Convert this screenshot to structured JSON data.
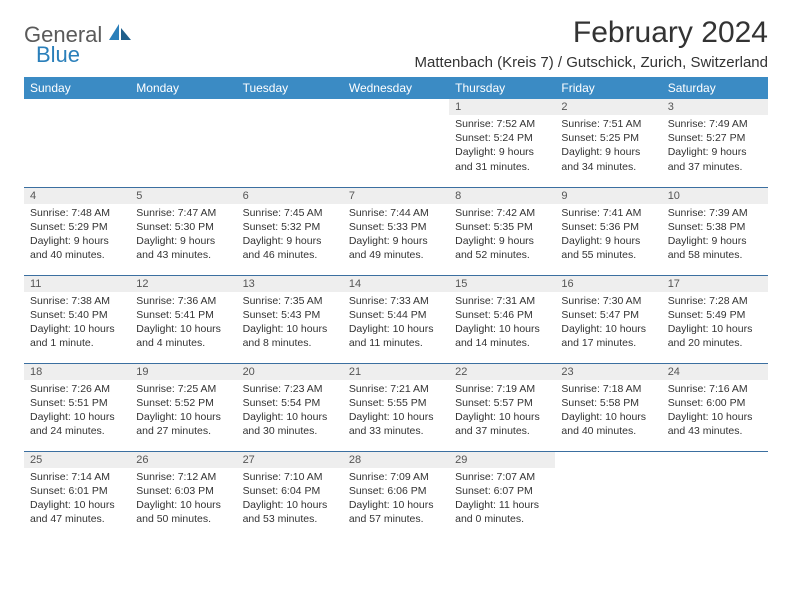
{
  "brand": {
    "word1": "General",
    "word2": "Blue",
    "color_general": "#5a5a5a",
    "color_blue": "#2a7fba"
  },
  "title": "February 2024",
  "location": "Mattenbach (Kreis 7) / Gutschick, Zurich, Switzerland",
  "colors": {
    "header_bg": "#3b8bc4",
    "header_fg": "#ffffff",
    "row_border": "#3b6fa0",
    "daynum_bg": "#eeeeee",
    "text": "#333333"
  },
  "day_headers": [
    "Sunday",
    "Monday",
    "Tuesday",
    "Wednesday",
    "Thursday",
    "Friday",
    "Saturday"
  ],
  "weeks": [
    [
      {
        "n": "",
        "sunrise": "",
        "sunset": "",
        "daylight": ""
      },
      {
        "n": "",
        "sunrise": "",
        "sunset": "",
        "daylight": ""
      },
      {
        "n": "",
        "sunrise": "",
        "sunset": "",
        "daylight": ""
      },
      {
        "n": "",
        "sunrise": "",
        "sunset": "",
        "daylight": ""
      },
      {
        "n": "1",
        "sunrise": "Sunrise: 7:52 AM",
        "sunset": "Sunset: 5:24 PM",
        "daylight": "Daylight: 9 hours and 31 minutes."
      },
      {
        "n": "2",
        "sunrise": "Sunrise: 7:51 AM",
        "sunset": "Sunset: 5:25 PM",
        "daylight": "Daylight: 9 hours and 34 minutes."
      },
      {
        "n": "3",
        "sunrise": "Sunrise: 7:49 AM",
        "sunset": "Sunset: 5:27 PM",
        "daylight": "Daylight: 9 hours and 37 minutes."
      }
    ],
    [
      {
        "n": "4",
        "sunrise": "Sunrise: 7:48 AM",
        "sunset": "Sunset: 5:29 PM",
        "daylight": "Daylight: 9 hours and 40 minutes."
      },
      {
        "n": "5",
        "sunrise": "Sunrise: 7:47 AM",
        "sunset": "Sunset: 5:30 PM",
        "daylight": "Daylight: 9 hours and 43 minutes."
      },
      {
        "n": "6",
        "sunrise": "Sunrise: 7:45 AM",
        "sunset": "Sunset: 5:32 PM",
        "daylight": "Daylight: 9 hours and 46 minutes."
      },
      {
        "n": "7",
        "sunrise": "Sunrise: 7:44 AM",
        "sunset": "Sunset: 5:33 PM",
        "daylight": "Daylight: 9 hours and 49 minutes."
      },
      {
        "n": "8",
        "sunrise": "Sunrise: 7:42 AM",
        "sunset": "Sunset: 5:35 PM",
        "daylight": "Daylight: 9 hours and 52 minutes."
      },
      {
        "n": "9",
        "sunrise": "Sunrise: 7:41 AM",
        "sunset": "Sunset: 5:36 PM",
        "daylight": "Daylight: 9 hours and 55 minutes."
      },
      {
        "n": "10",
        "sunrise": "Sunrise: 7:39 AM",
        "sunset": "Sunset: 5:38 PM",
        "daylight": "Daylight: 9 hours and 58 minutes."
      }
    ],
    [
      {
        "n": "11",
        "sunrise": "Sunrise: 7:38 AM",
        "sunset": "Sunset: 5:40 PM",
        "daylight": "Daylight: 10 hours and 1 minute."
      },
      {
        "n": "12",
        "sunrise": "Sunrise: 7:36 AM",
        "sunset": "Sunset: 5:41 PM",
        "daylight": "Daylight: 10 hours and 4 minutes."
      },
      {
        "n": "13",
        "sunrise": "Sunrise: 7:35 AM",
        "sunset": "Sunset: 5:43 PM",
        "daylight": "Daylight: 10 hours and 8 minutes."
      },
      {
        "n": "14",
        "sunrise": "Sunrise: 7:33 AM",
        "sunset": "Sunset: 5:44 PM",
        "daylight": "Daylight: 10 hours and 11 minutes."
      },
      {
        "n": "15",
        "sunrise": "Sunrise: 7:31 AM",
        "sunset": "Sunset: 5:46 PM",
        "daylight": "Daylight: 10 hours and 14 minutes."
      },
      {
        "n": "16",
        "sunrise": "Sunrise: 7:30 AM",
        "sunset": "Sunset: 5:47 PM",
        "daylight": "Daylight: 10 hours and 17 minutes."
      },
      {
        "n": "17",
        "sunrise": "Sunrise: 7:28 AM",
        "sunset": "Sunset: 5:49 PM",
        "daylight": "Daylight: 10 hours and 20 minutes."
      }
    ],
    [
      {
        "n": "18",
        "sunrise": "Sunrise: 7:26 AM",
        "sunset": "Sunset: 5:51 PM",
        "daylight": "Daylight: 10 hours and 24 minutes."
      },
      {
        "n": "19",
        "sunrise": "Sunrise: 7:25 AM",
        "sunset": "Sunset: 5:52 PM",
        "daylight": "Daylight: 10 hours and 27 minutes."
      },
      {
        "n": "20",
        "sunrise": "Sunrise: 7:23 AM",
        "sunset": "Sunset: 5:54 PM",
        "daylight": "Daylight: 10 hours and 30 minutes."
      },
      {
        "n": "21",
        "sunrise": "Sunrise: 7:21 AM",
        "sunset": "Sunset: 5:55 PM",
        "daylight": "Daylight: 10 hours and 33 minutes."
      },
      {
        "n": "22",
        "sunrise": "Sunrise: 7:19 AM",
        "sunset": "Sunset: 5:57 PM",
        "daylight": "Daylight: 10 hours and 37 minutes."
      },
      {
        "n": "23",
        "sunrise": "Sunrise: 7:18 AM",
        "sunset": "Sunset: 5:58 PM",
        "daylight": "Daylight: 10 hours and 40 minutes."
      },
      {
        "n": "24",
        "sunrise": "Sunrise: 7:16 AM",
        "sunset": "Sunset: 6:00 PM",
        "daylight": "Daylight: 10 hours and 43 minutes."
      }
    ],
    [
      {
        "n": "25",
        "sunrise": "Sunrise: 7:14 AM",
        "sunset": "Sunset: 6:01 PM",
        "daylight": "Daylight: 10 hours and 47 minutes."
      },
      {
        "n": "26",
        "sunrise": "Sunrise: 7:12 AM",
        "sunset": "Sunset: 6:03 PM",
        "daylight": "Daylight: 10 hours and 50 minutes."
      },
      {
        "n": "27",
        "sunrise": "Sunrise: 7:10 AM",
        "sunset": "Sunset: 6:04 PM",
        "daylight": "Daylight: 10 hours and 53 minutes."
      },
      {
        "n": "28",
        "sunrise": "Sunrise: 7:09 AM",
        "sunset": "Sunset: 6:06 PM",
        "daylight": "Daylight: 10 hours and 57 minutes."
      },
      {
        "n": "29",
        "sunrise": "Sunrise: 7:07 AM",
        "sunset": "Sunset: 6:07 PM",
        "daylight": "Daylight: 11 hours and 0 minutes."
      },
      {
        "n": "",
        "sunrise": "",
        "sunset": "",
        "daylight": ""
      },
      {
        "n": "",
        "sunrise": "",
        "sunset": "",
        "daylight": ""
      }
    ]
  ]
}
